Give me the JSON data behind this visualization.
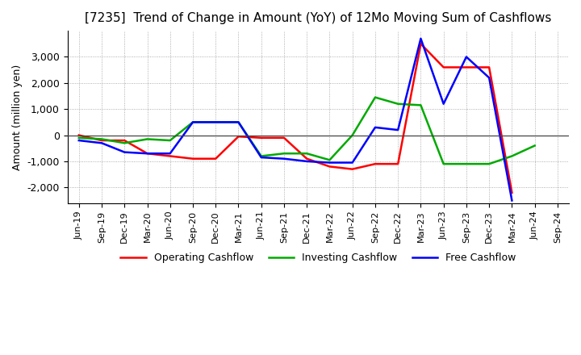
{
  "title": "[7235]  Trend of Change in Amount (YoY) of 12Mo Moving Sum of Cashflows",
  "ylabel": "Amount (million yen)",
  "x_labels": [
    "Jun-19",
    "Sep-19",
    "Dec-19",
    "Mar-20",
    "Jun-20",
    "Sep-20",
    "Dec-20",
    "Mar-21",
    "Jun-21",
    "Sep-21",
    "Dec-21",
    "Mar-22",
    "Jun-22",
    "Sep-22",
    "Dec-22",
    "Mar-23",
    "Jun-23",
    "Sep-23",
    "Dec-23",
    "Mar-24",
    "Jun-24",
    "Sep-24"
  ],
  "operating": [
    0,
    -200,
    -200,
    -700,
    -800,
    -900,
    -900,
    -50,
    -100,
    -100,
    -900,
    -1200,
    -1300,
    -1100,
    -1100,
    3500,
    2600,
    2600,
    2600,
    -2200,
    null,
    null
  ],
  "investing": [
    -100,
    -150,
    -300,
    -150,
    -200,
    500,
    500,
    500,
    -800,
    -700,
    -700,
    -950,
    0,
    1450,
    1200,
    1150,
    -1100,
    -1100,
    -1100,
    -800,
    -400,
    null
  ],
  "free": [
    -200,
    -300,
    -650,
    -700,
    -700,
    500,
    500,
    500,
    -850,
    -900,
    -1000,
    -1050,
    -1050,
    300,
    200,
    3700,
    1200,
    3000,
    2200,
    -2500,
    null,
    null
  ],
  "operating_color": "#ff0000",
  "investing_color": "#00aa00",
  "free_color": "#0000ff",
  "ylim": [
    -2600,
    4000
  ],
  "yticks": [
    -2000,
    -1000,
    0,
    1000,
    2000,
    3000
  ],
  "background_color": "#ffffff",
  "grid_color": "#999999",
  "title_fontsize": 11,
  "axis_fontsize": 9,
  "tick_fontsize": 8,
  "legend_fontsize": 9,
  "linewidth": 1.8
}
